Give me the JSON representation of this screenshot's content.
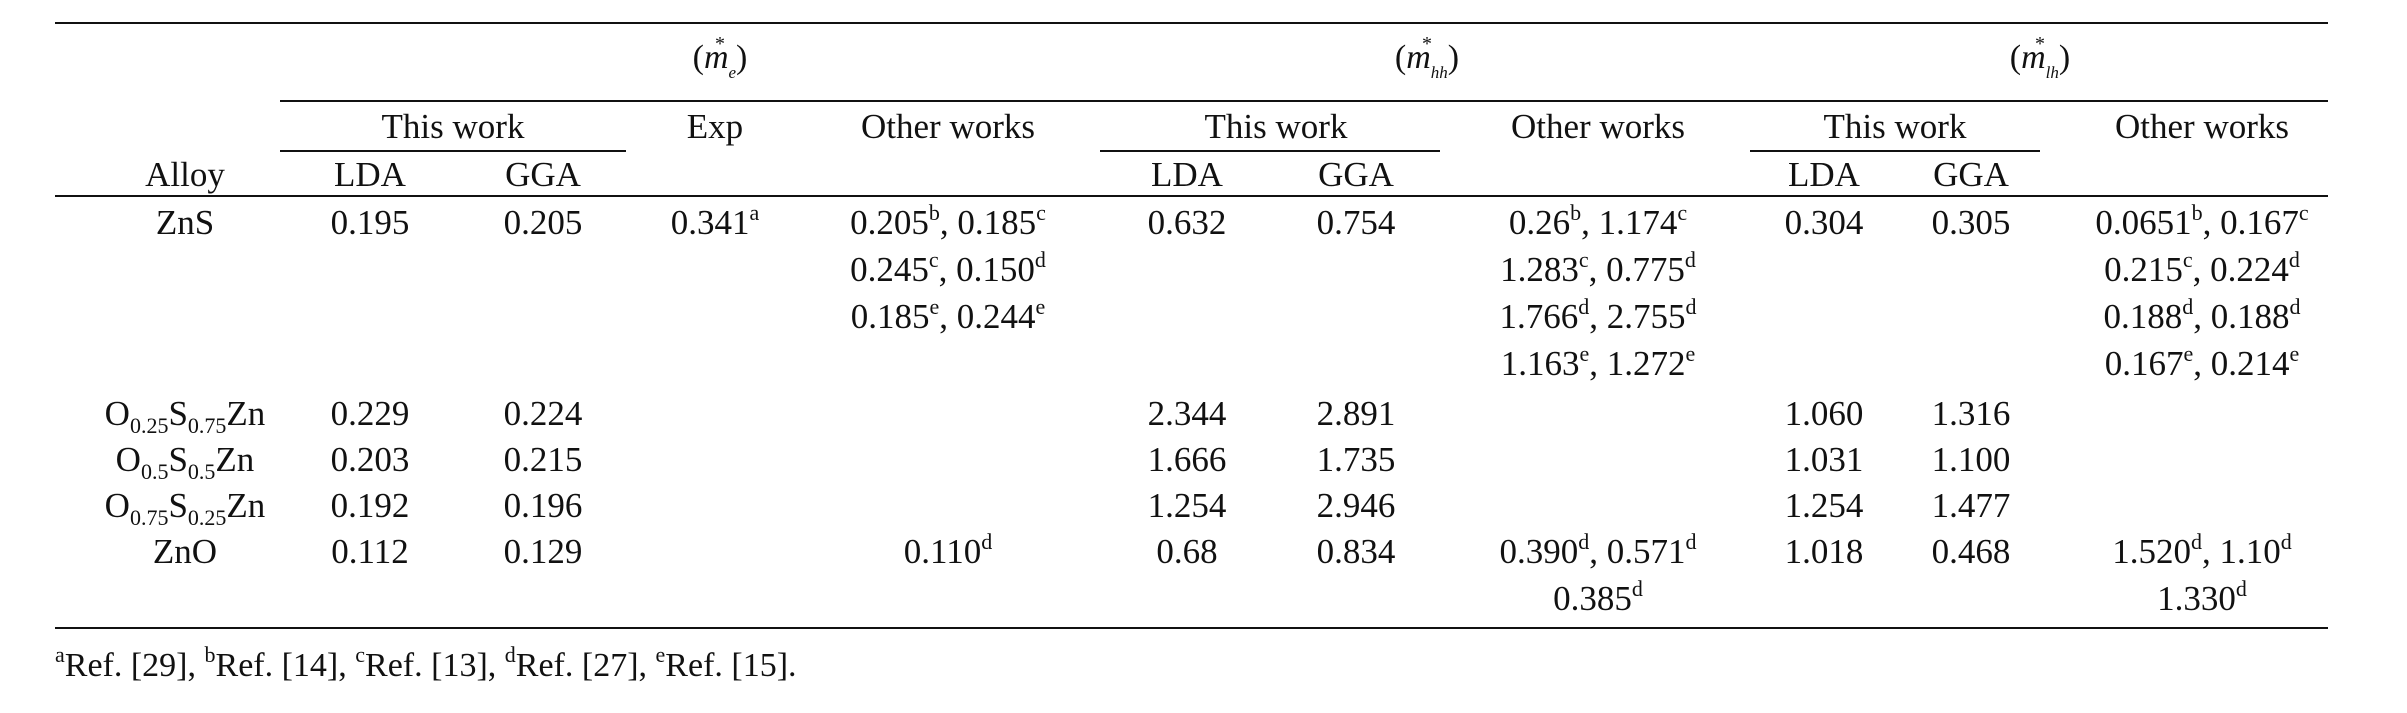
{
  "table": {
    "groups": [
      {
        "symbol": "m",
        "subscript": "e",
        "star": "*"
      },
      {
        "symbol": "m",
        "subscript": "hh",
        "star": "*"
      },
      {
        "symbol": "m",
        "subscript": "lh",
        "star": "*"
      }
    ],
    "subheaders": {
      "this_work": "This work",
      "exp": "Exp",
      "other_works": "Other works",
      "lda": "LDA",
      "gga": "GGA",
      "alloy": "Alloy"
    },
    "rows": [
      {
        "alloy": {
          "parts": [
            {
              "t": "ZnS"
            }
          ]
        },
        "e_lda": "0.195",
        "e_gga": "0.205",
        "e_exp": {
          "v": "0.341",
          "r": "a"
        },
        "e_other": [
          [
            {
              "v": "0.205",
              "r": "b"
            },
            {
              "v": "0.185",
              "r": "c"
            }
          ],
          [
            {
              "v": "0.245",
              "r": "c"
            },
            {
              "v": "0.150",
              "r": "d"
            }
          ],
          [
            {
              "v": "0.185",
              "r": "e"
            },
            {
              "v": "0.244",
              "r": "e"
            }
          ]
        ],
        "hh_lda": "0.632",
        "hh_gga": "0.754",
        "hh_other": [
          [
            {
              "v": "0.26",
              "r": "b"
            },
            {
              "v": "1.174",
              "r": "c"
            }
          ],
          [
            {
              "v": "1.283",
              "r": "c"
            },
            {
              "v": "0.775",
              "r": "d"
            }
          ],
          [
            {
              "v": "1.766",
              "r": "d"
            },
            {
              "v": "2.755",
              "r": "d"
            }
          ],
          [
            {
              "v": "1.163",
              "r": "e"
            },
            {
              "v": "1.272",
              "r": "e"
            }
          ]
        ],
        "lh_lda": "0.304",
        "lh_gga": "0.305",
        "lh_other": [
          [
            {
              "v": "0.0651",
              "r": "b"
            },
            {
              "v": "0.167",
              "r": "c"
            }
          ],
          [
            {
              "v": "0.215",
              "r": "c"
            },
            {
              "v": "0.224",
              "r": "d"
            }
          ],
          [
            {
              "v": "0.188",
              "r": "d"
            },
            {
              "v": "0.188",
              "r": "d"
            }
          ],
          [
            {
              "v": "0.167",
              "r": "e"
            },
            {
              "v": "0.214",
              "r": "e"
            }
          ]
        ]
      },
      {
        "alloy": {
          "parts": [
            {
              "t": "O"
            },
            {
              "s": "0.25"
            },
            {
              "t": "S"
            },
            {
              "s": "0.75"
            },
            {
              "t": "Zn"
            }
          ]
        },
        "e_lda": "0.229",
        "e_gga": "0.224",
        "e_exp": null,
        "e_other": [],
        "hh_lda": "2.344",
        "hh_gga": "2.891",
        "hh_other": [],
        "lh_lda": "1.060",
        "lh_gga": "1.316",
        "lh_other": []
      },
      {
        "alloy": {
          "parts": [
            {
              "t": "O"
            },
            {
              "s": "0.5"
            },
            {
              "t": "S"
            },
            {
              "s": "0.5"
            },
            {
              "t": "Zn"
            }
          ]
        },
        "e_lda": "0.203",
        "e_gga": "0.215",
        "e_exp": null,
        "e_other": [],
        "hh_lda": "1.666",
        "hh_gga": "1.735",
        "hh_other": [],
        "lh_lda": "1.031",
        "lh_gga": "1.100",
        "lh_other": []
      },
      {
        "alloy": {
          "parts": [
            {
              "t": "O"
            },
            {
              "s": "0.75"
            },
            {
              "t": "S"
            },
            {
              "s": "0.25"
            },
            {
              "t": "Zn"
            }
          ]
        },
        "e_lda": "0.192",
        "e_gga": "0.196",
        "e_exp": null,
        "e_other": [],
        "hh_lda": "1.254",
        "hh_gga": "2.946",
        "hh_other": [],
        "lh_lda": "1.254",
        "lh_gga": "1.477",
        "lh_other": []
      },
      {
        "alloy": {
          "parts": [
            {
              "t": "ZnO"
            }
          ]
        },
        "e_lda": "0.112",
        "e_gga": "0.129",
        "e_exp": null,
        "e_other": [
          [
            {
              "v": "0.110",
              "r": "d"
            }
          ]
        ],
        "hh_lda": "0.68",
        "hh_gga": "0.834",
        "hh_other": [
          [
            {
              "v": "0.390",
              "r": "d"
            },
            {
              "v": "0.571",
              "r": "d"
            }
          ],
          [
            {
              "v": "0.385",
              "r": "d"
            }
          ]
        ],
        "lh_lda": "1.018",
        "lh_gga": "0.468",
        "lh_other": [
          [
            {
              "v": "1.520",
              "r": "d"
            },
            {
              "v": "1.10",
              "r": "d"
            }
          ],
          [
            {
              "v": "1.330",
              "r": "d"
            }
          ]
        ]
      }
    ]
  },
  "footnotes": [
    {
      "mark": "a",
      "text": "Ref. [29]"
    },
    {
      "mark": "b",
      "text": "Ref. [14]"
    },
    {
      "mark": "c",
      "text": "Ref. [13]"
    },
    {
      "mark": "d",
      "text": "Ref. [27]"
    },
    {
      "mark": "e",
      "text": "Ref. [15]"
    }
  ]
}
